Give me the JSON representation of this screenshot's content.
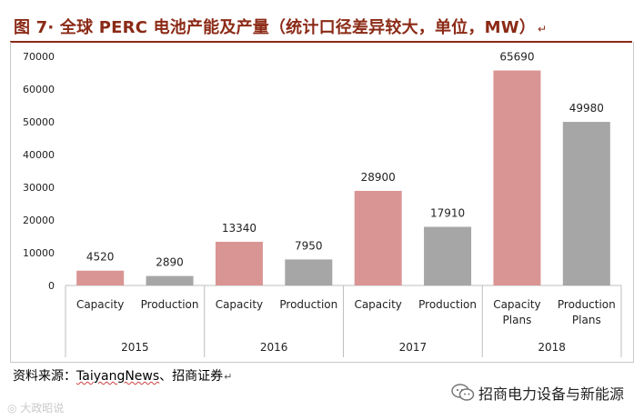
{
  "header": {
    "title": "图 7· 全球 PERC 电池产能及产量（统计口径差异较大，单位，MW）",
    "title_mark": "↵"
  },
  "chart_data": {
    "type": "bar",
    "ylim": [
      0,
      70000
    ],
    "yticks": [
      0,
      10000,
      20000,
      30000,
      40000,
      50000,
      60000,
      70000
    ],
    "grid": false,
    "groups": [
      {
        "year": "2015",
        "bars": [
          {
            "label": [
              "Capacity"
            ],
            "value": 4520,
            "kind": "capacity"
          },
          {
            "label": [
              "Production"
            ],
            "value": 2890,
            "kind": "production"
          }
        ]
      },
      {
        "year": "2016",
        "bars": [
          {
            "label": [
              "Capacity"
            ],
            "value": 13340,
            "kind": "capacity"
          },
          {
            "label": [
              "Production"
            ],
            "value": 7950,
            "kind": "production"
          }
        ]
      },
      {
        "year": "2017",
        "bars": [
          {
            "label": [
              "Capacity"
            ],
            "value": 28900,
            "kind": "capacity"
          },
          {
            "label": [
              "Production"
            ],
            "value": 17910,
            "kind": "production"
          }
        ]
      },
      {
        "year": "2018",
        "bars": [
          {
            "label": [
              "Capacity",
              "Plans"
            ],
            "value": 65690,
            "kind": "capacity"
          },
          {
            "label": [
              "Production",
              "Plans"
            ],
            "value": 49980,
            "kind": "production"
          }
        ]
      }
    ],
    "colors": {
      "capacity": "#d99594",
      "production": "#a6a6a6"
    }
  },
  "footer": {
    "source_prefix": "资料来源：",
    "source_name": "TaiyangNews",
    "source_suffix": "、招商证券",
    "source_mark": "↵",
    "wechat_account": "招商电力设备与新能源",
    "watermark": "大政昭说"
  }
}
